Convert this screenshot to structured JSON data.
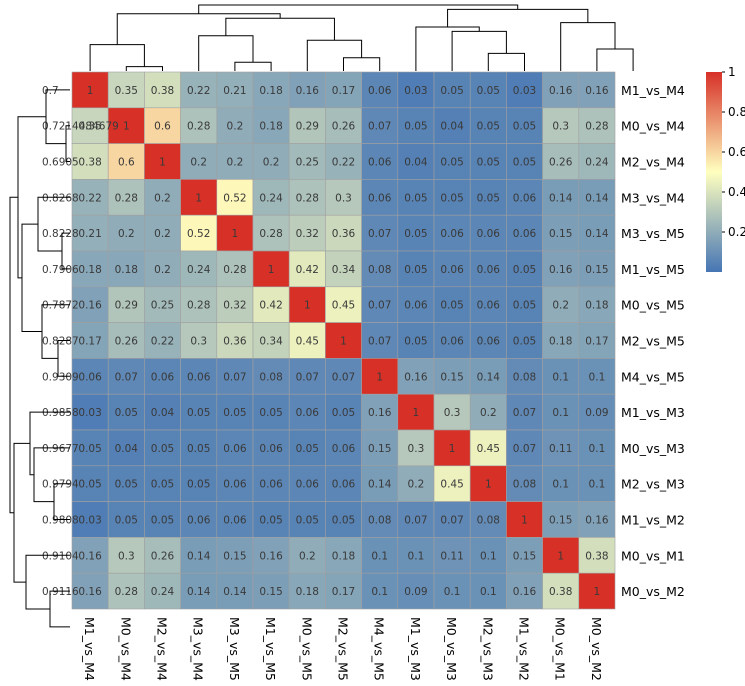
{
  "chart_data": {
    "type": "heatmap",
    "title": "",
    "row_labels": [
      "M1_vs_M4",
      "M0_vs_M4",
      "M2_vs_M4",
      "M3_vs_M4",
      "M3_vs_M5",
      "M1_vs_M5",
      "M0_vs_M5",
      "M2_vs_M5",
      "M4_vs_M5",
      "M1_vs_M3",
      "M0_vs_M3",
      "M2_vs_M3",
      "M1_vs_M2",
      "M0_vs_M1",
      "M0_vs_M2"
    ],
    "col_labels": [
      "M1_vs_M4",
      "M0_vs_M4",
      "M2_vs_M4",
      "M3_vs_M4",
      "M3_vs_M5",
      "M1_vs_M5",
      "M0_vs_M5",
      "M2_vs_M5",
      "M4_vs_M5",
      "M1_vs_M3",
      "M0_vs_M3",
      "M2_vs_M3",
      "M1_vs_M2",
      "M0_vs_M1",
      "M0_vs_M2"
    ],
    "values": [
      [
        1.0,
        0.35,
        0.38,
        0.22,
        0.21,
        0.18,
        0.16,
        0.17,
        0.06,
        0.03,
        0.05,
        0.05,
        0.03,
        0.16,
        0.16
      ],
      [
        0.35,
        1.0,
        0.6,
        0.28,
        0.2,
        0.18,
        0.29,
        0.26,
        0.07,
        0.05,
        0.04,
        0.05,
        0.05,
        0.3,
        0.28
      ],
      [
        0.38,
        0.6,
        1.0,
        0.2,
        0.2,
        0.2,
        0.25,
        0.22,
        0.06,
        0.04,
        0.05,
        0.05,
        0.05,
        0.26,
        0.24
      ],
      [
        0.22,
        0.28,
        0.2,
        1.0,
        0.52,
        0.24,
        0.28,
        0.3,
        0.06,
        0.05,
        0.05,
        0.05,
        0.06,
        0.14,
        0.14
      ],
      [
        0.21,
        0.2,
        0.2,
        0.52,
        1.0,
        0.28,
        0.32,
        0.36,
        0.07,
        0.05,
        0.06,
        0.06,
        0.06,
        0.15,
        0.14
      ],
      [
        0.18,
        0.18,
        0.2,
        0.24,
        0.28,
        1.0,
        0.42,
        0.34,
        0.08,
        0.05,
        0.06,
        0.06,
        0.05,
        0.16,
        0.15
      ],
      [
        0.16,
        0.29,
        0.25,
        0.28,
        0.32,
        0.42,
        1.0,
        0.45,
        0.07,
        0.06,
        0.05,
        0.06,
        0.05,
        0.2,
        0.18
      ],
      [
        0.17,
        0.26,
        0.22,
        0.3,
        0.36,
        0.34,
        0.45,
        1.0,
        0.07,
        0.05,
        0.06,
        0.06,
        0.05,
        0.18,
        0.17
      ],
      [
        0.06,
        0.07,
        0.06,
        0.06,
        0.07,
        0.08,
        0.07,
        0.07,
        1.0,
        0.16,
        0.15,
        0.14,
        0.08,
        0.1,
        0.1
      ],
      [
        0.03,
        0.05,
        0.04,
        0.05,
        0.05,
        0.05,
        0.06,
        0.05,
        0.16,
        1.0,
        0.3,
        0.2,
        0.07,
        0.1,
        0.09
      ],
      [
        0.05,
        0.04,
        0.05,
        0.05,
        0.06,
        0.06,
        0.05,
        0.06,
        0.15,
        0.3,
        1.0,
        0.45,
        0.07,
        0.11,
        0.1
      ],
      [
        0.05,
        0.05,
        0.05,
        0.05,
        0.06,
        0.06,
        0.06,
        0.06,
        0.14,
        0.2,
        0.45,
        1.0,
        0.08,
        0.1,
        0.1
      ],
      [
        0.03,
        0.05,
        0.05,
        0.06,
        0.06,
        0.05,
        0.05,
        0.05,
        0.08,
        0.07,
        0.07,
        0.08,
        1.0,
        0.15,
        0.16
      ],
      [
        0.16,
        0.3,
        0.26,
        0.14,
        0.15,
        0.16,
        0.2,
        0.18,
        0.1,
        0.1,
        0.11,
        0.1,
        0.15,
        1.0,
        0.38
      ],
      [
        0.16,
        0.28,
        0.24,
        0.14,
        0.14,
        0.15,
        0.18,
        0.17,
        0.1,
        0.09,
        0.1,
        0.1,
        0.16,
        0.38,
        1.0
      ]
    ],
    "legend_ticks": [
      "1",
      "0.8",
      "0.6",
      "0.4",
      "0.2"
    ],
    "legend_tick_values": [
      1.0,
      0.8,
      0.6,
      0.4,
      0.2
    ],
    "value_range": [
      0.0,
      1.0
    ],
    "colors": [
      "#4575b4",
      "#ffffbf",
      "#d73027"
    ],
    "cell_label_color": "#3a3a3a",
    "cell_border_color": "#a0a0a0",
    "left_column_labels": [
      "0.7",
      "0.7214484679",
      "0.6905",
      "0.8268",
      "0.8228",
      "0.7906",
      "0.7872",
      "0.8287",
      "0.9309",
      "0.9858",
      "0.9677",
      "0.9794",
      "0.9808",
      "0.9104",
      "0.9116"
    ],
    "row_dendrogram_merges": [
      [
        1,
        2
      ],
      [
        4,
        5
      ],
      [
        7,
        8
      ],
      [
        11,
        12
      ],
      [
        14,
        15
      ],
      [
        0,
        -1
      ],
      [
        6,
        -3
      ],
      [
        3,
        -2
      ],
      [
        10,
        -4
      ],
      [
        9,
        -9
      ],
      [
        13,
        -5
      ],
      [
        -7,
        -8
      ],
      [
        -6,
        -12
      ],
      [
        -10,
        -11
      ],
      [
        -13,
        -14
      ]
    ],
    "col_dendrogram_merges": [
      [
        1,
        2
      ],
      [
        4,
        5
      ],
      [
        7,
        8
      ],
      [
        11,
        12
      ],
      [
        14,
        15
      ],
      [
        0,
        -1
      ],
      [
        6,
        -3
      ],
      [
        3,
        -2
      ],
      [
        10,
        -4
      ],
      [
        9,
        -9
      ],
      [
        13,
        -5
      ],
      [
        -7,
        -8
      ],
      [
        -6,
        -12
      ],
      [
        -10,
        -11
      ],
      [
        -13,
        -14
      ]
    ]
  }
}
